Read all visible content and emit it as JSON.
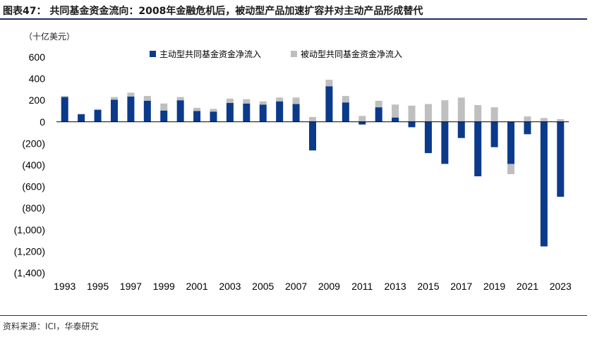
{
  "header": {
    "title": "图表47：  共同基金资金流向：2008年金融危机后，被动型产品加速扩容并对主动产品形成替代"
  },
  "footer": {
    "source": "资料来源：ICI，华泰研究"
  },
  "chart_data": {
    "type": "bar",
    "stacked": true,
    "unit_label": "（十亿美元）",
    "categories": [
      "1993",
      "1994",
      "1995",
      "1996",
      "1997",
      "1998",
      "1999",
      "2000",
      "2001",
      "2002",
      "2003",
      "2004",
      "2005",
      "2006",
      "2007",
      "2008",
      "2009",
      "2010",
      "2011",
      "2012",
      "2013",
      "2014",
      "2015",
      "2016",
      "2017",
      "2018",
      "2019",
      "2020",
      "2021",
      "2022",
      "2023"
    ],
    "x_tick_labels": [
      "1993",
      "1995",
      "1997",
      "1999",
      "2001",
      "2003",
      "2005",
      "2007",
      "2009",
      "2011",
      "2013",
      "2015",
      "2017",
      "2019",
      "2021",
      "2023"
    ],
    "ylim": [
      -1400,
      600
    ],
    "y_ticks": [
      600,
      400,
      200,
      0,
      -200,
      -400,
      -600,
      -800,
      -1000,
      -1200,
      -1400
    ],
    "y_tick_labels": [
      "600",
      "400",
      "200",
      "0",
      "(200)",
      "(400)",
      "(600)",
      "(800)",
      "(1,000)",
      "(1,200)",
      "(1,400)"
    ],
    "legend_position": "top-center",
    "series": [
      {
        "name": "主动型共同基金资金净流入",
        "color": "#0b3a8a",
        "values": [
          230,
          70,
          110,
          205,
          235,
          195,
          105,
          200,
          100,
          95,
          175,
          170,
          160,
          190,
          165,
          -265,
          330,
          180,
          -25,
          135,
          40,
          -50,
          -290,
          -390,
          -150,
          -505,
          -235,
          -390,
          -115,
          -1155,
          -695
        ]
      },
      {
        "name": "被动型共同基金资金净流入",
        "color": "#bfbfbf",
        "values": [
          10,
          5,
          10,
          25,
          35,
          45,
          65,
          30,
          30,
          25,
          40,
          40,
          30,
          35,
          60,
          45,
          60,
          60,
          55,
          60,
          120,
          150,
          165,
          200,
          225,
          155,
          135,
          -95,
          50,
          35,
          25
        ]
      }
    ]
  }
}
